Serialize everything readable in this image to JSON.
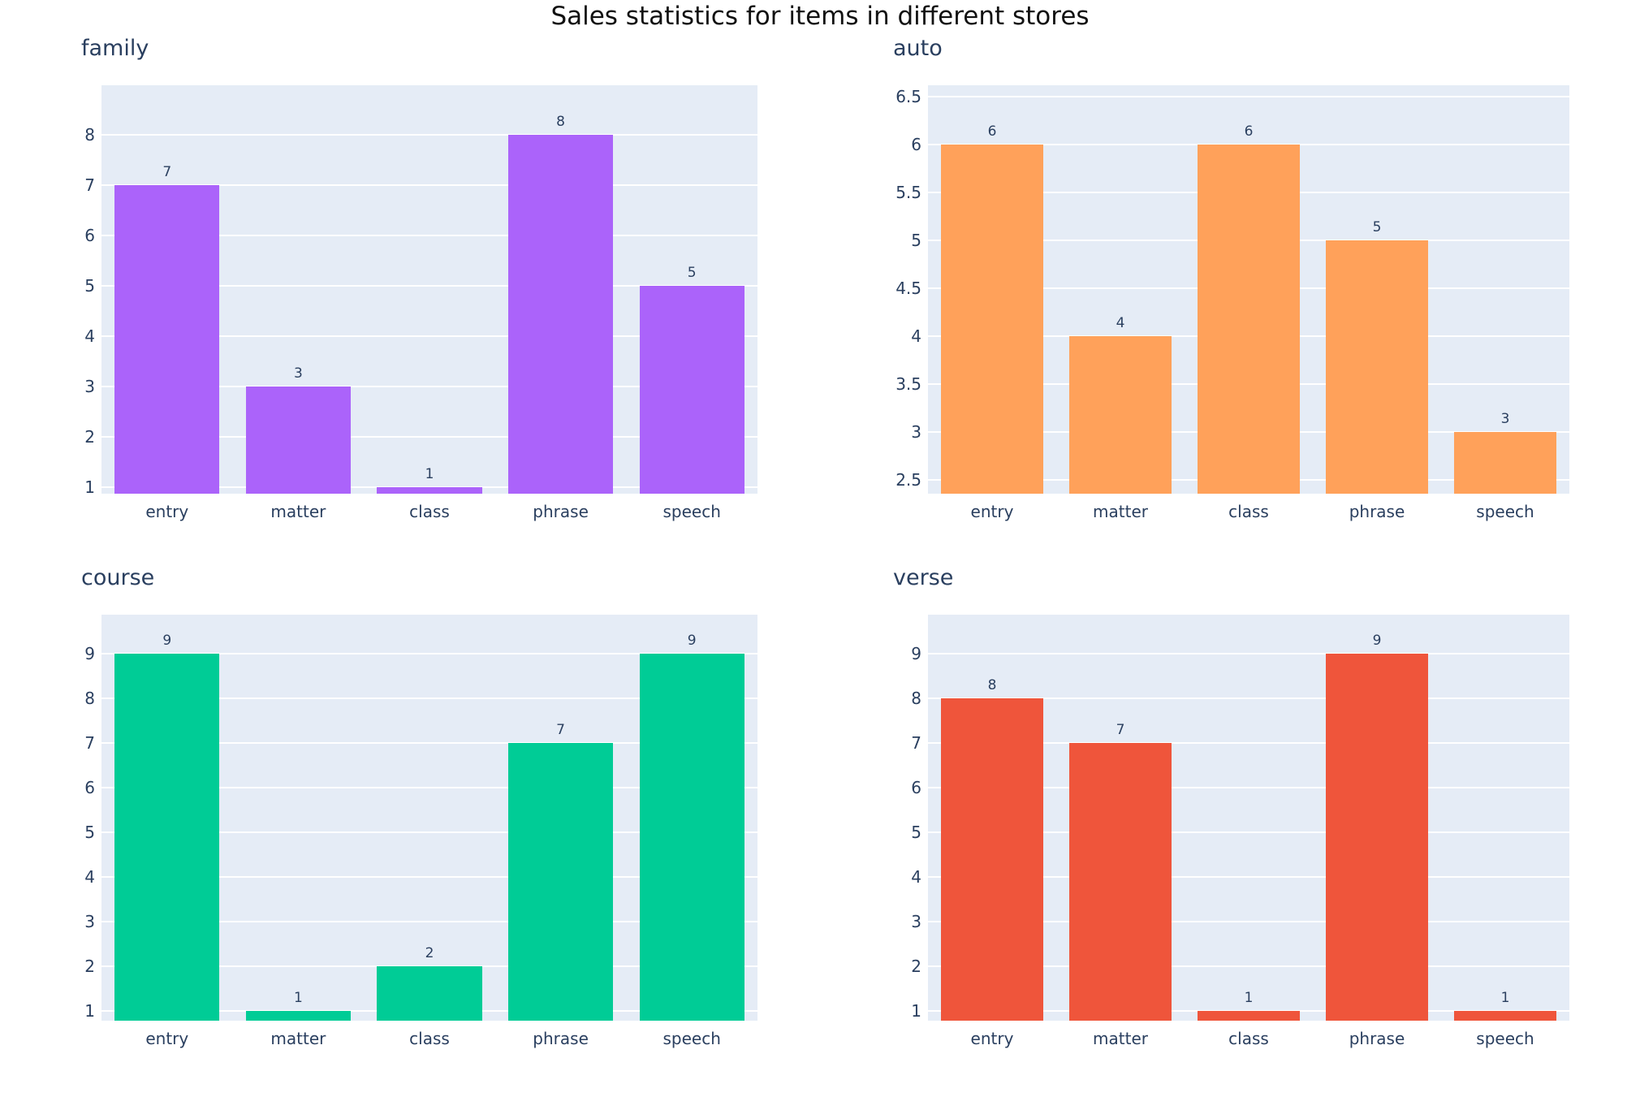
{
  "page": {
    "title": "Sales statistics for items in different stores"
  },
  "colors": {
    "main_title": "#111111",
    "axis_text": "#2a3f5f",
    "plot_background": "#e5ecf6",
    "gridline": "#ffffff"
  },
  "chart_data": [
    {
      "type": "bar",
      "title": "family",
      "categories": [
        "entry",
        "matter",
        "class",
        "phrase",
        "speech"
      ],
      "values": [
        7,
        3,
        1,
        8,
        5
      ],
      "bar_color": "#ab63fa",
      "yticks": [
        1,
        2,
        3,
        4,
        5,
        6,
        7,
        8
      ],
      "ytick_labels": [
        "1",
        "2",
        "3",
        "4",
        "5",
        "6",
        "7",
        "8"
      ],
      "ylim": [
        0.87,
        8.98
      ],
      "grid": true,
      "legend": "none",
      "bar_value_labels": true
    },
    {
      "type": "bar",
      "title": "auto",
      "categories": [
        "entry",
        "matter",
        "class",
        "phrase",
        "speech"
      ],
      "values": [
        6,
        4,
        6,
        5,
        3
      ],
      "bar_color": "#ffa15a",
      "yticks": [
        2.5,
        3,
        3.5,
        4,
        4.5,
        5,
        5.5,
        6,
        6.5
      ],
      "ytick_labels": [
        "2.5",
        "3",
        "3.5",
        "4",
        "4.5",
        "5",
        "5.5",
        "6",
        "6.5"
      ],
      "ylim": [
        2.36,
        6.62
      ],
      "grid": true,
      "legend": "none",
      "bar_value_labels": true
    },
    {
      "type": "bar",
      "title": "course",
      "categories": [
        "entry",
        "matter",
        "class",
        "phrase",
        "speech"
      ],
      "values": [
        9,
        1,
        2,
        7,
        9
      ],
      "bar_color": "#00cc96",
      "yticks": [
        1,
        2,
        3,
        4,
        5,
        6,
        7,
        8,
        9
      ],
      "ytick_labels": [
        "1",
        "2",
        "3",
        "4",
        "5",
        "6",
        "7",
        "8",
        "9"
      ],
      "ylim": [
        0.78,
        9.87
      ],
      "grid": true,
      "legend": "none",
      "bar_value_labels": true
    },
    {
      "type": "bar",
      "title": "verse",
      "categories": [
        "entry",
        "matter",
        "class",
        "phrase",
        "speech"
      ],
      "values": [
        8,
        7,
        1,
        9,
        1
      ],
      "bar_color": "#ef553b",
      "yticks": [
        1,
        2,
        3,
        4,
        5,
        6,
        7,
        8,
        9
      ],
      "ytick_labels": [
        "1",
        "2",
        "3",
        "4",
        "5",
        "6",
        "7",
        "8",
        "9"
      ],
      "ylim": [
        0.78,
        9.87
      ],
      "grid": true,
      "legend": "none",
      "bar_value_labels": true
    }
  ]
}
